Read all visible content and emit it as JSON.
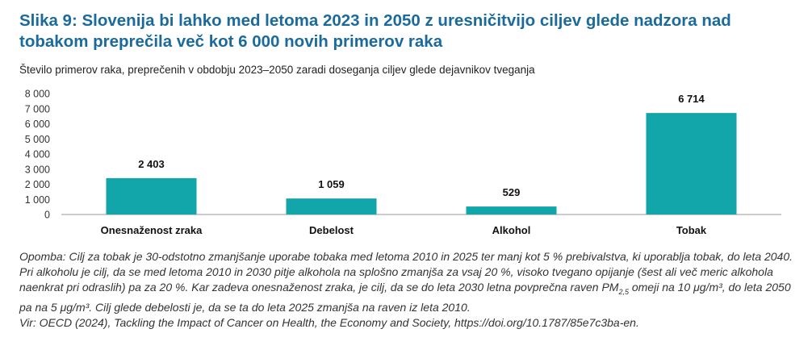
{
  "header": {
    "title": "Slika 9: Slovenija bi lahko med letoma 2023 in 2050 z uresničitvijo ciljev glede nadzora nad tobakom preprečila več kot 6 000 novih primerov raka",
    "subtitle": "Število primerov raka, preprečenih v obdobju 2023–2050 zaradi doseganja ciljev glede dejavnikov tveganja"
  },
  "chart_data": {
    "type": "bar",
    "categories": [
      "Onesnaženost zraka",
      "Debelost",
      "Alkohol",
      "Tobak"
    ],
    "values": [
      2403,
      1059,
      529,
      6714
    ],
    "value_labels": [
      "2 403",
      "1 059",
      "529",
      "6 714"
    ],
    "ylim": [
      0,
      8000
    ],
    "yticks": [
      0,
      1000,
      2000,
      3000,
      4000,
      5000,
      6000,
      7000,
      8000
    ],
    "ytick_labels": [
      "0",
      "1 000",
      "2 000",
      "3 000",
      "4 000",
      "5 000",
      "6 000",
      "7 000",
      "8 000"
    ],
    "bar_color": "#12a6aa",
    "grid": false,
    "legend": "none"
  },
  "footer": {
    "note_before_pm": "Opomba: Cilj za tobak je 30-odstotno zmanjšanje uporabe tobaka med letoma 2010 in 2025 ter manj kot 5 % prebivalstva, ki uporablja tobak, do leta 2040. Pri alkoholu je cilj, da se med letoma 2010 in 2030 pitje alkohola na splošno zmanjša za vsaj 20 %, visoko tvegano opijanje (šest ali več meric alkohola naenkrat pri odraslih) pa za 20 %. Kar zadeva onesnaženost zraka, je cilj, da se do leta 2030 letna povprečna raven PM",
    "pm_subscript": "2,5",
    "note_after_pm": " omeji na 10 μg/m³, do leta 2050 pa na 5 μg/m³. Cilj glede debelosti je, da se ta do leta 2025 zmanjša na raven iz leta 2010.",
    "source": "Vir: OECD (2024), Tackling the Impact of Cancer on Health, the Economy and Society, https://doi.org/10.1787/85e7c3ba-en."
  }
}
